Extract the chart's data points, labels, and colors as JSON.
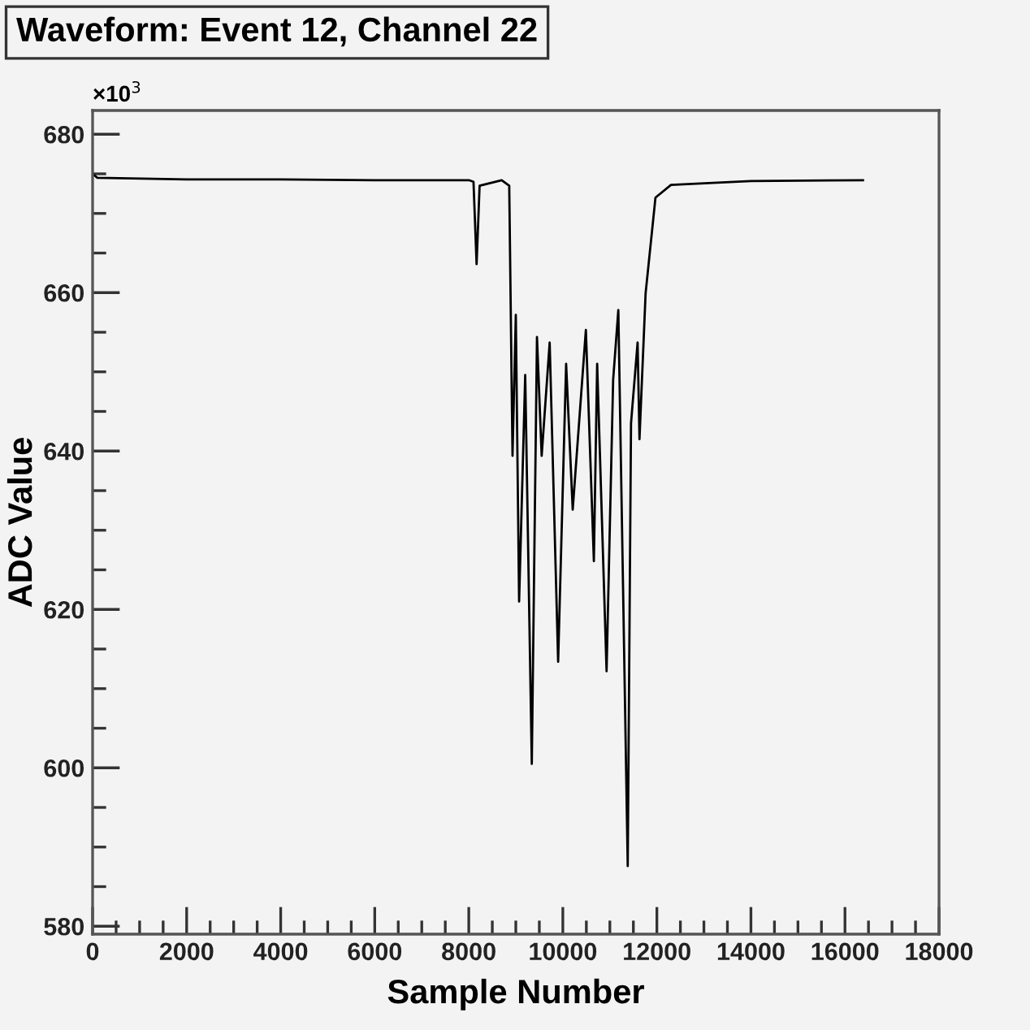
{
  "chart_data": {
    "type": "line",
    "title": "Waveform: Event 12, Channel 22",
    "xlabel": "Sample Number",
    "ylabel": "ADC Value",
    "annotations": [
      "×10$^{3}$"
    ],
    "series": [
      {
        "color": "#000000",
        "x": [
          0,
          100,
          2000,
          4000,
          6000,
          8000,
          8100,
          8166,
          8230,
          8700,
          8860,
          8930,
          9000,
          9070,
          9200,
          9340,
          9450,
          9550,
          9720,
          9900,
          10070,
          10210,
          10490,
          10660,
          10730,
          10930,
          11070,
          11180,
          11280,
          11380,
          11450,
          11590,
          11630,
          11760,
          11970,
          12300,
          14000,
          16383
        ],
        "values": [
          675,
          674.5,
          674.3,
          674.3,
          674.2,
          674.2,
          674,
          663.6,
          673.5,
          674.2,
          673.5,
          639.4,
          657.2,
          621,
          649.6,
          600.5,
          654.4,
          639.4,
          653.7,
          613.4,
          651,
          632.6,
          655.3,
          626.1,
          651,
          612.2,
          649,
          657.8,
          623,
          587.6,
          643.5,
          653.7,
          641.5,
          659.9,
          672,
          673.6,
          674.1,
          674.2
        ]
      }
    ],
    "xlim": [
      0,
      18000
    ],
    "ylim": [
      579,
      683
    ],
    "xticks": [
      0,
      2000,
      4000,
      6000,
      8000,
      10000,
      12000,
      14000,
      16000,
      18000
    ],
    "yticks": [
      580,
      600,
      620,
      640,
      660,
      680
    ],
    "grid": false,
    "legend": false,
    "marker": "none",
    "line_style": "solid"
  }
}
